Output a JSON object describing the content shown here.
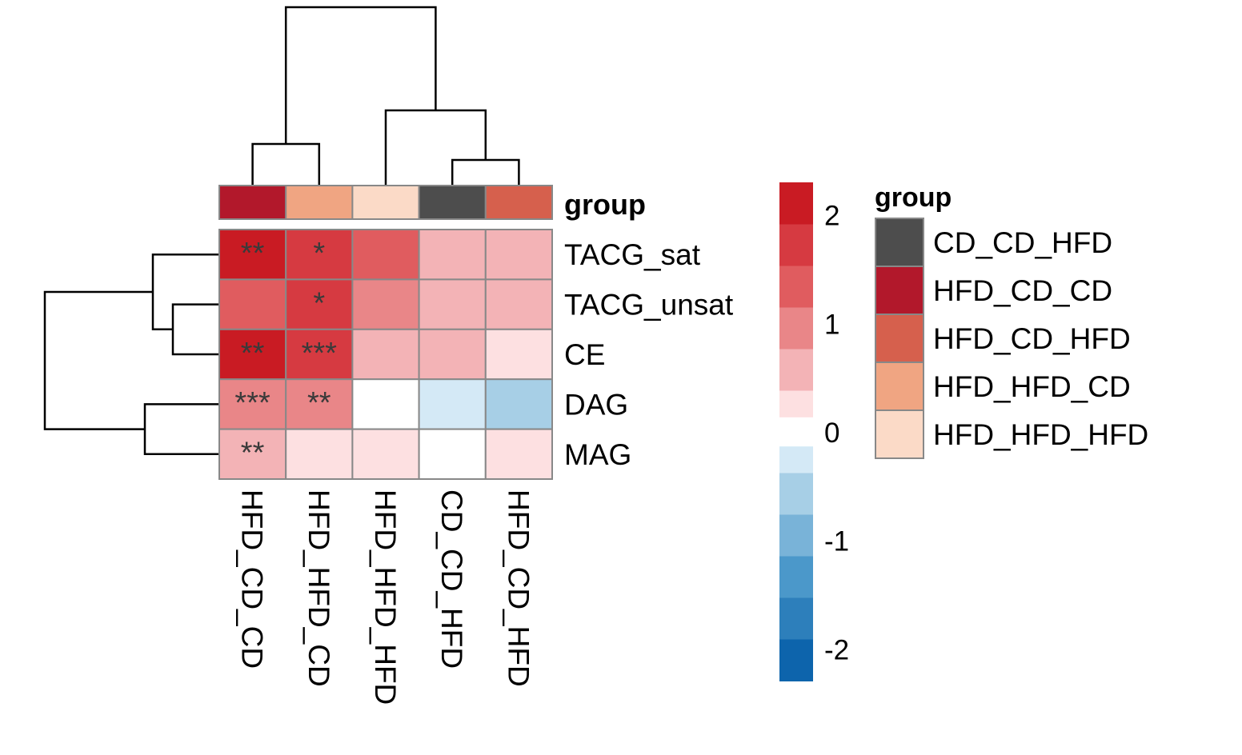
{
  "chart_data": {
    "type": "heatmap",
    "columns": [
      "HFD_CD_CD",
      "HFD_HFD_CD",
      "HFD_HFD_HFD",
      "CD_CD_HFD",
      "HFD_CD_HFD"
    ],
    "rows": [
      "TACG_sat",
      "TACG_unsat",
      "CE",
      "DAG",
      "MAG"
    ],
    "values": [
      [
        2.1,
        1.9,
        1.4,
        0.6,
        0.6
      ],
      [
        1.4,
        1.8,
        1.1,
        0.5,
        0.6
      ],
      [
        2.0,
        1.9,
        0.5,
        0.6,
        0.2
      ],
      [
        1.0,
        1.0,
        0.0,
        -0.3,
        -0.4
      ],
      [
        0.6,
        0.2,
        0.2,
        0.0,
        0.2
      ]
    ],
    "significance": [
      [
        "**",
        "*",
        "",
        "",
        ""
      ],
      [
        "",
        "*",
        "",
        "",
        ""
      ],
      [
        "**",
        "***",
        "",
        "",
        ""
      ],
      [
        "***",
        "**",
        "",
        "",
        ""
      ],
      [
        "**",
        "",
        "",
        "",
        ""
      ]
    ],
    "annotation": {
      "label": "group",
      "colors": {
        "CD_CD_HFD": "#4d4d4d",
        "HFD_CD_CD": "#b2182b",
        "HFD_CD_HFD": "#d6604d",
        "HFD_HFD_CD": "#f0a582",
        "HFD_HFD_HFD": "#fbdac7"
      }
    },
    "color_scale": {
      "range": [
        -2.3,
        2.3
      ],
      "ticks": [
        2,
        1,
        0,
        -1,
        -2
      ],
      "positive_bins": [
        "#fde0e1",
        "#f3b3b6",
        "#e98688",
        "#e05c5f",
        "#d63a41",
        "#c91b23"
      ],
      "negative_bins": [
        "#d4e9f6",
        "#a7cfe6",
        "#79b3d8",
        "#4b98ca",
        "#2d7fbb",
        "#0d64ac"
      ],
      "zero_color": "#ffffff"
    },
    "legend": {
      "title": "group",
      "entries": [
        "CD_CD_HFD",
        "HFD_CD_CD",
        "HFD_CD_HFD",
        "HFD_HFD_CD",
        "HFD_HFD_HFD"
      ]
    },
    "cell_border_color": "#888888",
    "dendrogram_color": "#000000"
  }
}
